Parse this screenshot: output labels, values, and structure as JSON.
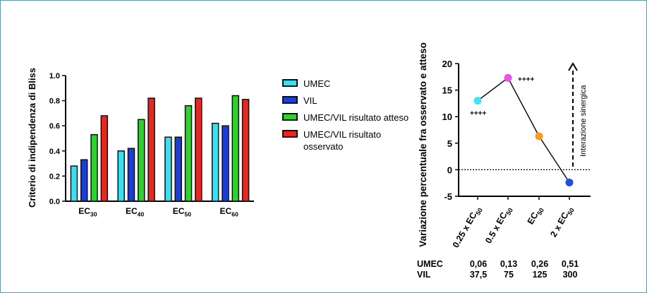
{
  "colors": {
    "UMEC": "#38e0f0",
    "VIL": "#1b3fd6",
    "atteso": "#2fd12f",
    "osservato": "#e8281e",
    "point_025": "#3ee6f0",
    "point_05": "#f04fe8",
    "point_ec50": "#ff9a20",
    "point_2x": "#1f4fe0",
    "frame": "#5b9bbd"
  },
  "legend": {
    "items": [
      {
        "label": "UMEC",
        "color_key": "UMEC"
      },
      {
        "label": "VIL",
        "color_key": "VIL"
      },
      {
        "label": "UMEC/VIL risultato atteso",
        "color_key": "atteso"
      },
      {
        "label": "UMEC/VIL risultato osservato",
        "color_key": "osservato"
      }
    ]
  },
  "chart_data": [
    {
      "type": "bar",
      "ylabel": "Criterio di indipendenza di Bliss",
      "ylim": [
        0,
        1.0
      ],
      "yticks": [
        "0.0",
        "0.2",
        "0.4",
        "0.6",
        "0.8",
        "1.0"
      ],
      "categories": [
        {
          "base": "EC",
          "sub": "30"
        },
        {
          "base": "EC",
          "sub": "40"
        },
        {
          "base": "EC",
          "sub": "50"
        },
        {
          "base": "EC",
          "sub": "60"
        }
      ],
      "series": [
        {
          "name": "UMEC",
          "values": [
            0.28,
            0.4,
            0.51,
            0.62
          ]
        },
        {
          "name": "VIL",
          "values": [
            0.33,
            0.42,
            0.51,
            0.6
          ]
        },
        {
          "name": "UMEC/VIL risultato atteso",
          "values": [
            0.53,
            0.65,
            0.76,
            0.84
          ]
        },
        {
          "name": "UMEC/VIL risultato osservato",
          "values": [
            0.68,
            0.82,
            0.82,
            0.81
          ]
        }
      ]
    },
    {
      "type": "line",
      "ylabel": "Variazione percentuale fra osservato e atteso",
      "ylim": [
        -5,
        20
      ],
      "yticks": [
        "-5",
        "0",
        "5",
        "10",
        "15",
        "20"
      ],
      "x": [
        {
          "pre": "0.25 x EC",
          "sub": "50"
        },
        {
          "pre": "0.5 x EC",
          "sub": "50"
        },
        {
          "pre": "EC",
          "sub": "50"
        },
        {
          "pre": "2 x EC",
          "sub": "50"
        }
      ],
      "values": [
        13.0,
        17.3,
        6.3,
        -2.4
      ],
      "point_color_keys": [
        "point_025",
        "point_05",
        "point_ec50",
        "point_2x"
      ],
      "annotations": [
        {
          "text": "++++",
          "point_index": 0
        },
        {
          "text": "++++",
          "point_index": 1
        }
      ],
      "reference_line": 0,
      "arrow_label": "Interazione sinergica"
    }
  ],
  "dose_table": {
    "rows": [
      {
        "label": "UMEC",
        "values": [
          "0,06",
          "0,13",
          "0,26",
          "0,51"
        ]
      },
      {
        "label": "VIL",
        "values": [
          "37,5",
          "75",
          "125",
          "300"
        ]
      }
    ]
  }
}
